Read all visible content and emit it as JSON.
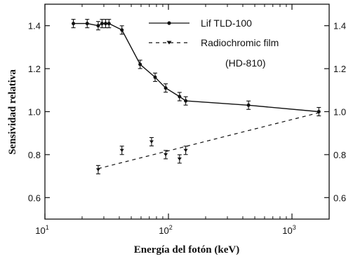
{
  "chart_data": {
    "type": "line",
    "xlabel": "Energía del fotón (keV)",
    "ylabel": "Sensividad relativa",
    "xscale": "log",
    "xlim": [
      10,
      2000
    ],
    "ylim": [
      0.5,
      1.5
    ],
    "xticks": [
      10,
      100,
      1000
    ],
    "xtick_labels": [
      {
        "base": "10",
        "exp": "1"
      },
      {
        "base": "10",
        "exp": "2"
      },
      {
        "base": "10",
        "exp": "3"
      }
    ],
    "yticks": [
      0.6,
      0.8,
      1.0,
      1.2,
      1.4
    ],
    "ytick_labels": [
      "0.6",
      "0.8",
      "1.0",
      "1.2",
      "1.4"
    ],
    "right_axis_labels": true,
    "legend_position": "top-right",
    "series": [
      {
        "name": "Lif TLD-100",
        "style": "solid-circle",
        "points": [
          {
            "x": 17,
            "y": 1.41
          },
          {
            "x": 22,
            "y": 1.41
          },
          {
            "x": 27,
            "y": 1.4
          },
          {
            "x": 29,
            "y": 1.41
          },
          {
            "x": 31,
            "y": 1.41
          },
          {
            "x": 33,
            "y": 1.41
          },
          {
            "x": 42,
            "y": 1.38
          },
          {
            "x": 59,
            "y": 1.22
          },
          {
            "x": 78,
            "y": 1.16
          },
          {
            "x": 95,
            "y": 1.11
          },
          {
            "x": 123,
            "y": 1.07
          },
          {
            "x": 138,
            "y": 1.05
          },
          {
            "x": 445,
            "y": 1.03
          },
          {
            "x": 1650,
            "y": 1.0
          }
        ]
      },
      {
        "name": "Radiochromic film",
        "name_line2": "(HD-810)",
        "style": "dashed-triangle",
        "fit": [
          {
            "x": 27,
            "y": 0.735
          },
          {
            "x": 1650,
            "y": 0.995
          }
        ],
        "points": [
          {
            "x": 27,
            "y": 0.73
          },
          {
            "x": 42,
            "y": 0.82
          },
          {
            "x": 73,
            "y": 0.86
          },
          {
            "x": 95,
            "y": 0.8
          },
          {
            "x": 123,
            "y": 0.78
          },
          {
            "x": 138,
            "y": 0.82
          }
        ]
      }
    ]
  }
}
